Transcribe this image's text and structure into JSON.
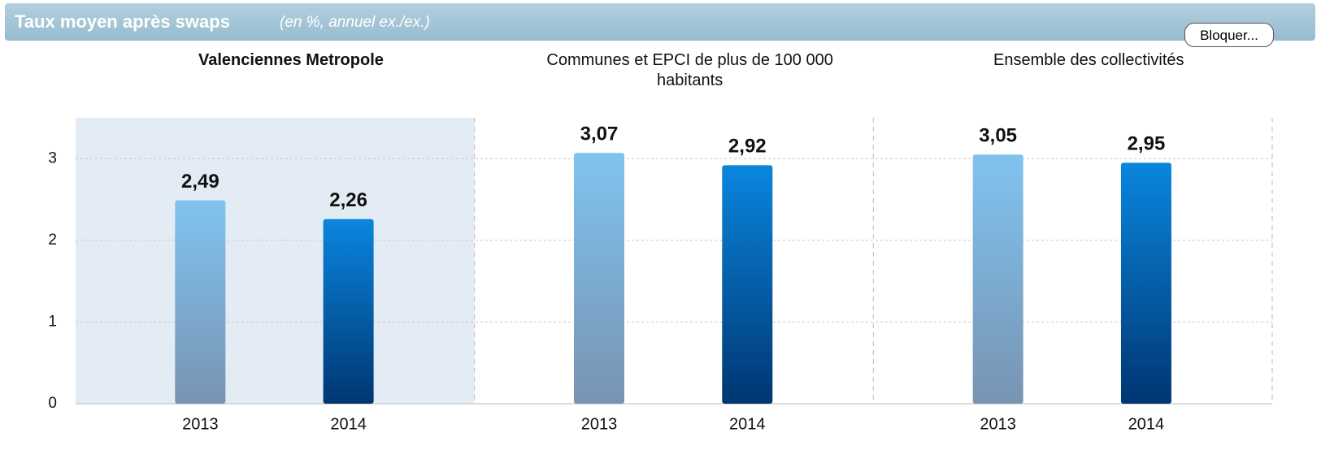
{
  "header": {
    "title": "Taux moyen après swaps",
    "subtitle": "(en %, annuel ex./ex.)",
    "button": "Bloquer..."
  },
  "chart_data": {
    "type": "bar",
    "categories": [
      "Valenciennes Metropole",
      "Communes et EPCI de plus de 100 000 habitants",
      "Ensemble des collectivités"
    ],
    "series": [
      {
        "name": "2013",
        "color": [
          "#80c3ef",
          "#7894b2"
        ],
        "values": [
          2.49,
          3.07,
          3.05
        ],
        "value_labels": [
          "2,49",
          "3,07",
          "3,05"
        ]
      },
      {
        "name": "2014",
        "color": [
          "#0a86de",
          "#003672"
        ],
        "values": [
          2.26,
          2.92,
          2.95
        ],
        "value_labels": [
          "2,26",
          "2,92",
          "2,95"
        ]
      }
    ],
    "ylim": [
      0,
      3.5
    ],
    "yticks": [
      0,
      1,
      2,
      3
    ],
    "grid": true
  }
}
